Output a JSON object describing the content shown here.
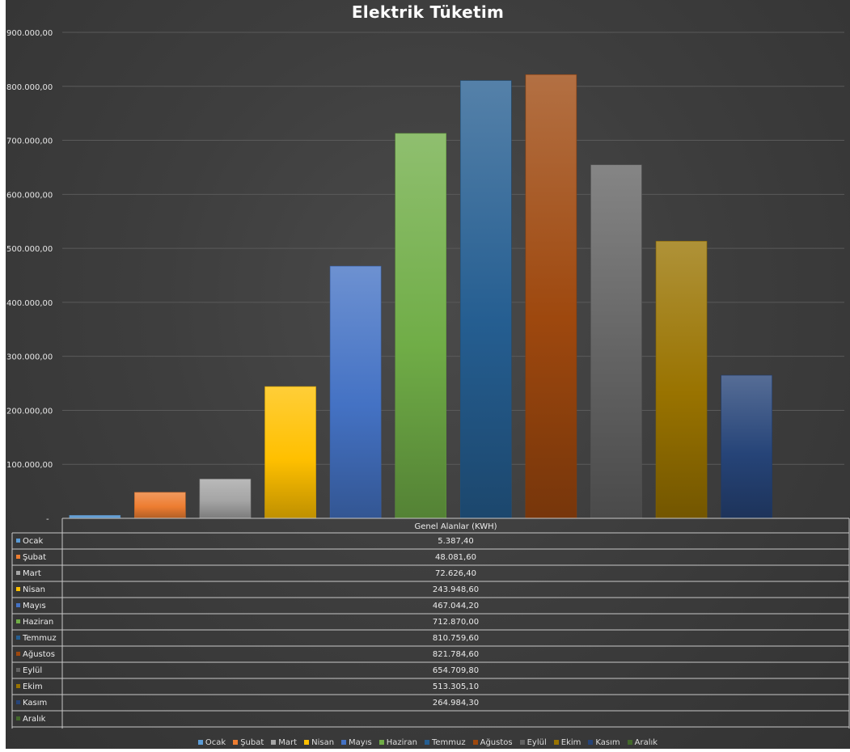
{
  "chart_data": {
    "type": "bar",
    "title": "Elektrik Tüketim",
    "series_name": "Genel Alanlar (KWH)",
    "categories": [
      "Ocak",
      "Şubat",
      "Mart",
      "Nisan",
      "Mayıs",
      "Haziran",
      "Temmuz",
      "Ağustos",
      "Eylül",
      "Ekim",
      "Kasım",
      "Aralık"
    ],
    "values": [
      5387.4,
      48081.6,
      72626.4,
      243948.6,
      467044.2,
      712870.0,
      810759.6,
      821784.6,
      654709.8,
      513305.1,
      264984.3,
      null
    ],
    "value_labels": [
      "5.387,40",
      "48.081,60",
      "72.626,40",
      "243.948,60",
      "467.044,20",
      "712.870,00",
      "810.759,60",
      "821.784,60",
      "654.709,80",
      "513.305,10",
      "264.984,30",
      ""
    ],
    "colors": [
      "#5b9bd5",
      "#ed7d31",
      "#a5a5a5",
      "#ffc000",
      "#4472c4",
      "#70ad47",
      "#255e91",
      "#9e480e",
      "#636363",
      "#997300",
      "#264478",
      "#43682b"
    ],
    "ylim": [
      0,
      900000
    ],
    "yticks": [
      {
        "value": 0,
        "label": "-"
      },
      {
        "value": 100000,
        "label": "100.000,00"
      },
      {
        "value": 200000,
        "label": "200.000,00"
      },
      {
        "value": 300000,
        "label": "300.000,00"
      },
      {
        "value": 400000,
        "label": "400.000,00"
      },
      {
        "value": 500000,
        "label": "500.000,00"
      },
      {
        "value": 600000,
        "label": "600.000,00"
      },
      {
        "value": 700000,
        "label": "700.000,00"
      },
      {
        "value": 800000,
        "label": "800.000,00"
      },
      {
        "value": 900000,
        "label": "900.000,00"
      }
    ],
    "grid": true,
    "legend_position": "bottom",
    "data_table": true
  }
}
